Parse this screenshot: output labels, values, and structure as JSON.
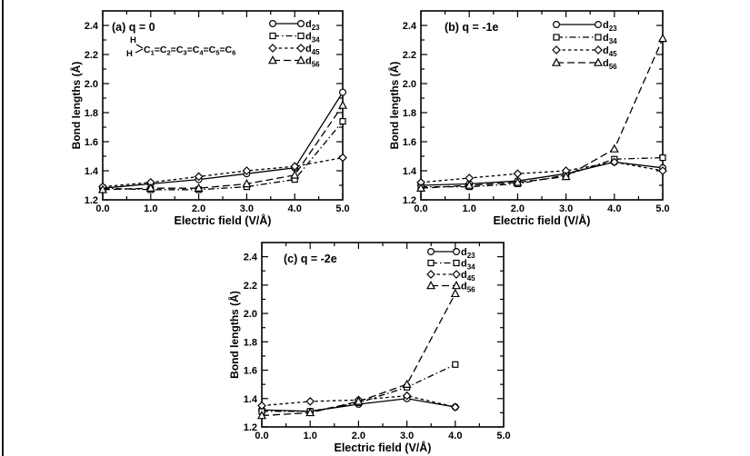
{
  "page": {
    "background": "#ffffff",
    "ink": "#000000",
    "description_labels": {
      "figure_kind": "bond-lengths-vs-electric-field"
    }
  },
  "chart_data": [
    {
      "id": "a",
      "type": "line",
      "panel_label": "(a) q = 0",
      "xlabel": "Electric field (V/Å)",
      "ylabel": "Bond lengths (Å)",
      "xlim": [
        0,
        5
      ],
      "ylim": [
        1.2,
        2.5
      ],
      "x_ticks": {
        "major": [
          0,
          1,
          2,
          3,
          4,
          5
        ],
        "labels": [
          "0.0",
          "1.0",
          "2.0",
          "3.0",
          "4.0",
          "5.0"
        ],
        "minor_step": 0.5
      },
      "y_ticks": {
        "major": [
          1.2,
          1.4,
          1.6,
          1.8,
          2.0,
          2.2,
          2.4
        ],
        "labels": [
          "1.2",
          "1.4",
          "1.6",
          "1.8",
          "2.0",
          "2.2",
          "2.4"
        ],
        "minor_step": 0.1
      },
      "x": [
        0,
        1,
        2,
        3,
        4,
        5
      ],
      "series": [
        {
          "name": "d23",
          "label_main": "d",
          "label_sub": "23",
          "marker": "circle",
          "line": "solid",
          "values": [
            1.28,
            1.31,
            1.34,
            1.38,
            1.42,
            1.94
          ]
        },
        {
          "name": "d34",
          "label_main": "d",
          "label_sub": "34",
          "marker": "square",
          "line": "dashdot",
          "values": [
            1.28,
            1.27,
            1.27,
            1.29,
            1.34,
            1.74
          ]
        },
        {
          "name": "d45",
          "label_main": "d",
          "label_sub": "45",
          "marker": "diamond",
          "line": "dashed",
          "values": [
            1.29,
            1.32,
            1.36,
            1.4,
            1.43,
            1.49
          ]
        },
        {
          "name": "d56",
          "label_main": "d",
          "label_sub": "56",
          "marker": "triangle",
          "line": "longdash",
          "values": [
            1.27,
            1.28,
            1.28,
            1.31,
            1.37,
            1.85
          ]
        }
      ],
      "molecule": {
        "h_top": "H",
        "h_bottom": "H",
        "bond": "=",
        "chain": [
          [
            "C",
            "1"
          ],
          [
            "C",
            "2"
          ],
          [
            "C",
            "3"
          ],
          [
            "C",
            "4"
          ],
          [
            "C",
            "5"
          ],
          [
            "C",
            "6"
          ]
        ]
      },
      "legend_position": "top-right",
      "grid": false
    },
    {
      "id": "b",
      "type": "line",
      "panel_label": "(b) q = -1e",
      "xlabel": "Electric field (V/Å)",
      "ylabel": "Bond lengths (Å)",
      "xlim": [
        0,
        5
      ],
      "ylim": [
        1.2,
        2.5
      ],
      "x_ticks": {
        "major": [
          0,
          1,
          2,
          3,
          4,
          5
        ],
        "labels": [
          "0.0",
          "1.0",
          "2.0",
          "3.0",
          "4.0",
          "5.0"
        ],
        "minor_step": 0.5
      },
      "y_ticks": {
        "major": [
          1.2,
          1.4,
          1.6,
          1.8,
          2.0,
          2.2,
          2.4
        ],
        "labels": [
          "1.2",
          "1.4",
          "1.6",
          "1.8",
          "2.0",
          "2.2",
          "2.4"
        ],
        "minor_step": 0.1
      },
      "x": [
        0,
        1,
        2,
        3,
        4,
        5
      ],
      "series": [
        {
          "name": "d23",
          "label_main": "d",
          "label_sub": "23",
          "marker": "circle",
          "line": "solid",
          "values": [
            1.3,
            1.31,
            1.33,
            1.38,
            1.46,
            1.42
          ]
        },
        {
          "name": "d34",
          "label_main": "d",
          "label_sub": "34",
          "marker": "square",
          "line": "dashdot",
          "values": [
            1.29,
            1.29,
            1.31,
            1.37,
            1.48,
            1.49
          ]
        },
        {
          "name": "d45",
          "label_main": "d",
          "label_sub": "45",
          "marker": "diamond",
          "line": "dashed",
          "values": [
            1.32,
            1.35,
            1.38,
            1.4,
            1.46,
            1.4
          ]
        },
        {
          "name": "d56",
          "label_main": "d",
          "label_sub": "56",
          "marker": "triangle",
          "line": "longdash",
          "values": [
            1.28,
            1.3,
            1.32,
            1.36,
            1.55,
            2.31
          ]
        }
      ],
      "legend_position": "top-right",
      "grid": false
    },
    {
      "id": "c",
      "type": "line",
      "panel_label": "(c) q = -2e",
      "xlabel": "Electric field (V/Å)",
      "ylabel": "Bond lengths (Å)",
      "xlim": [
        0,
        5
      ],
      "ylim": [
        1.2,
        2.5
      ],
      "x_ticks": {
        "major": [
          0,
          1,
          2,
          3,
          4,
          5
        ],
        "labels": [
          "0.0",
          "1.0",
          "2.0",
          "3.0",
          "4.0",
          "5.0"
        ],
        "minor_step": 0.5
      },
      "y_ticks": {
        "major": [
          1.2,
          1.4,
          1.6,
          1.8,
          2.0,
          2.2,
          2.4
        ],
        "labels": [
          "1.2",
          "1.4",
          "1.6",
          "1.8",
          "2.0",
          "2.2",
          "2.4"
        ],
        "minor_step": 0.1
      },
      "x": [
        0,
        1,
        2,
        3,
        4
      ],
      "series": [
        {
          "name": "d23",
          "label_main": "d",
          "label_sub": "23",
          "marker": "circle",
          "line": "solid",
          "values": [
            1.32,
            1.31,
            1.36,
            1.4,
            1.34
          ]
        },
        {
          "name": "d34",
          "label_main": "d",
          "label_sub": "34",
          "marker": "square",
          "line": "dashdot",
          "values": [
            1.31,
            1.31,
            1.37,
            1.48,
            1.64
          ]
        },
        {
          "name": "d45",
          "label_main": "d",
          "label_sub": "45",
          "marker": "diamond",
          "line": "dashed",
          "values": [
            1.35,
            1.38,
            1.39,
            1.42,
            1.34
          ]
        },
        {
          "name": "d56",
          "label_main": "d",
          "label_sub": "56",
          "marker": "triangle",
          "line": "longdash",
          "values": [
            1.28,
            1.3,
            1.38,
            1.5,
            2.14
          ]
        }
      ],
      "legend_position": "top-right",
      "grid": false
    }
  ]
}
